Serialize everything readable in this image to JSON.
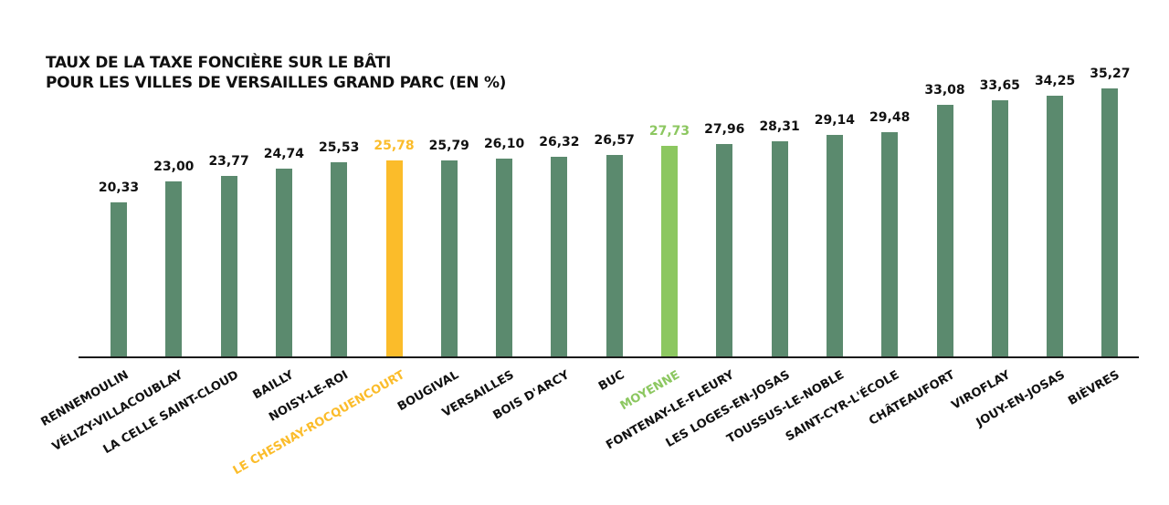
{
  "title": {
    "line1": "TAUX DE LA TAXE FONCIÈRE SUR LE BÂTI",
    "line2": "POUR LES VILLES DE VERSAILLES GRAND PARC (EN %)"
  },
  "colors": {
    "default": "#5b8a6e",
    "highlight": "#fbbc2a",
    "average": "#8cc760",
    "text": "#111111",
    "axis": "#1a1a1a"
  },
  "chart_data": {
    "type": "bar",
    "title": "TAUX DE LA TAXE FONCIÈRE SUR LE BÂTI POUR LES VILLES DE VERSAILLES GRAND PARC (EN %)",
    "xlabel": "",
    "ylabel": "",
    "ylim": [
      0,
      36
    ],
    "grid": false,
    "legend": "none",
    "categories": [
      "RENNEMOULIN",
      "VÉLIZY-VILLACOUBLAY",
      "LA CELLE SAINT-CLOUD",
      "BAILLY",
      "NOISY-LE-ROI",
      "LE CHESNAY-ROCQUENCOURT",
      "BOUGIVAL",
      "VERSAILLES",
      "BOIS D'ARCY",
      "BUC",
      "MOYENNE",
      "FONTENAY-LE-FLEURY",
      "LES LOGES-EN-JOSAS",
      "TOUSSUS-LE-NOBLE",
      "SAINT-CYR-L'ÉCOLE",
      "CHÂTEAUFORT",
      "VIROFLAY",
      "JOUY-EN-JOSAS",
      "BIÈVRES"
    ],
    "values": [
      20.33,
      23.0,
      23.77,
      24.74,
      25.53,
      25.78,
      25.79,
      26.1,
      26.32,
      26.57,
      27.73,
      27.96,
      28.31,
      29.14,
      29.48,
      33.08,
      33.65,
      34.25,
      35.27
    ],
    "value_labels": [
      "20,33",
      "23,00",
      "23,77",
      "24,74",
      "25,53",
      "25,78",
      "25,79",
      "26,10",
      "26,32",
      "26,57",
      "27,73",
      "27,96",
      "28,31",
      "29,14",
      "29,48",
      "33,08",
      "33,65",
      "34,25",
      "35,27"
    ],
    "highlights": {
      "LE CHESNAY-ROCQUENCOURT": "highlight",
      "MOYENNE": "average"
    }
  }
}
